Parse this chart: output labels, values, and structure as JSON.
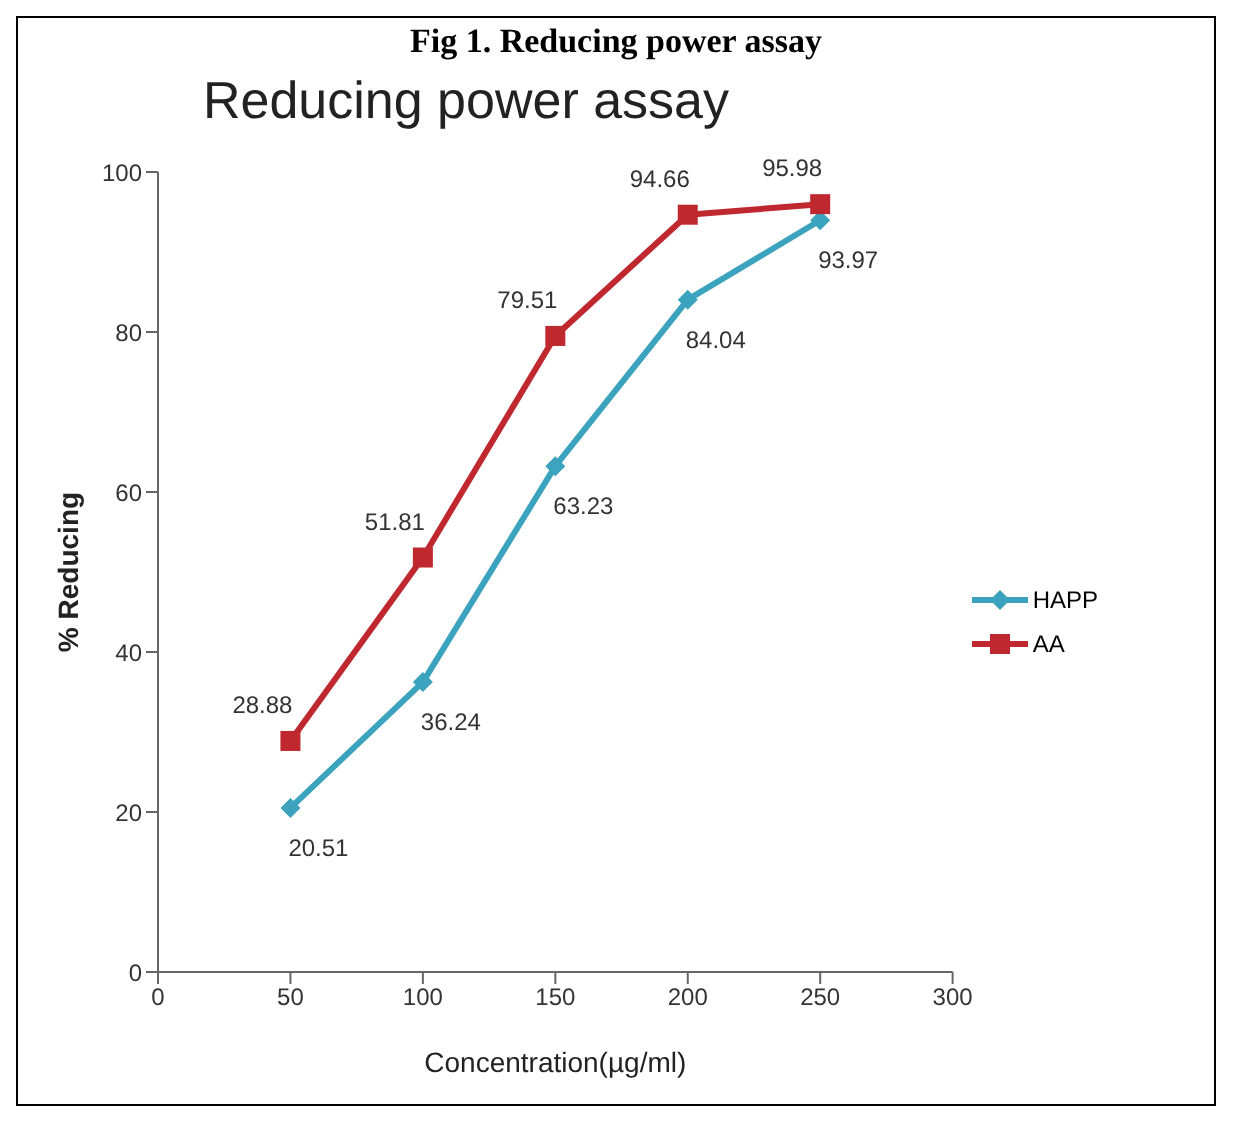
{
  "chart_data": {
    "type": "line",
    "title": "Fig 1. Reducing power assay",
    "subtitle": "Reducing power assay",
    "xlabel": "Concentration(µg/ml)",
    "ylabel": "% Reducing",
    "x": [
      50,
      100,
      150,
      200,
      250
    ],
    "series": [
      {
        "name": "HAPP",
        "color": "#3ba3bd",
        "marker": "diamond",
        "values": [
          20.51,
          36.24,
          63.23,
          84.04,
          93.97
        ]
      },
      {
        "name": "AA",
        "color": "#c0282f",
        "marker": "square",
        "values": [
          28.88,
          51.81,
          79.51,
          94.66,
          95.98
        ]
      }
    ],
    "xlim": [
      0,
      300
    ],
    "xticks": [
      0,
      50,
      100,
      150,
      200,
      250,
      300
    ],
    "ylim": [
      0,
      100
    ],
    "yticks": [
      0,
      20,
      40,
      60,
      80,
      100
    ],
    "legend": "right",
    "data_labels": true
  }
}
